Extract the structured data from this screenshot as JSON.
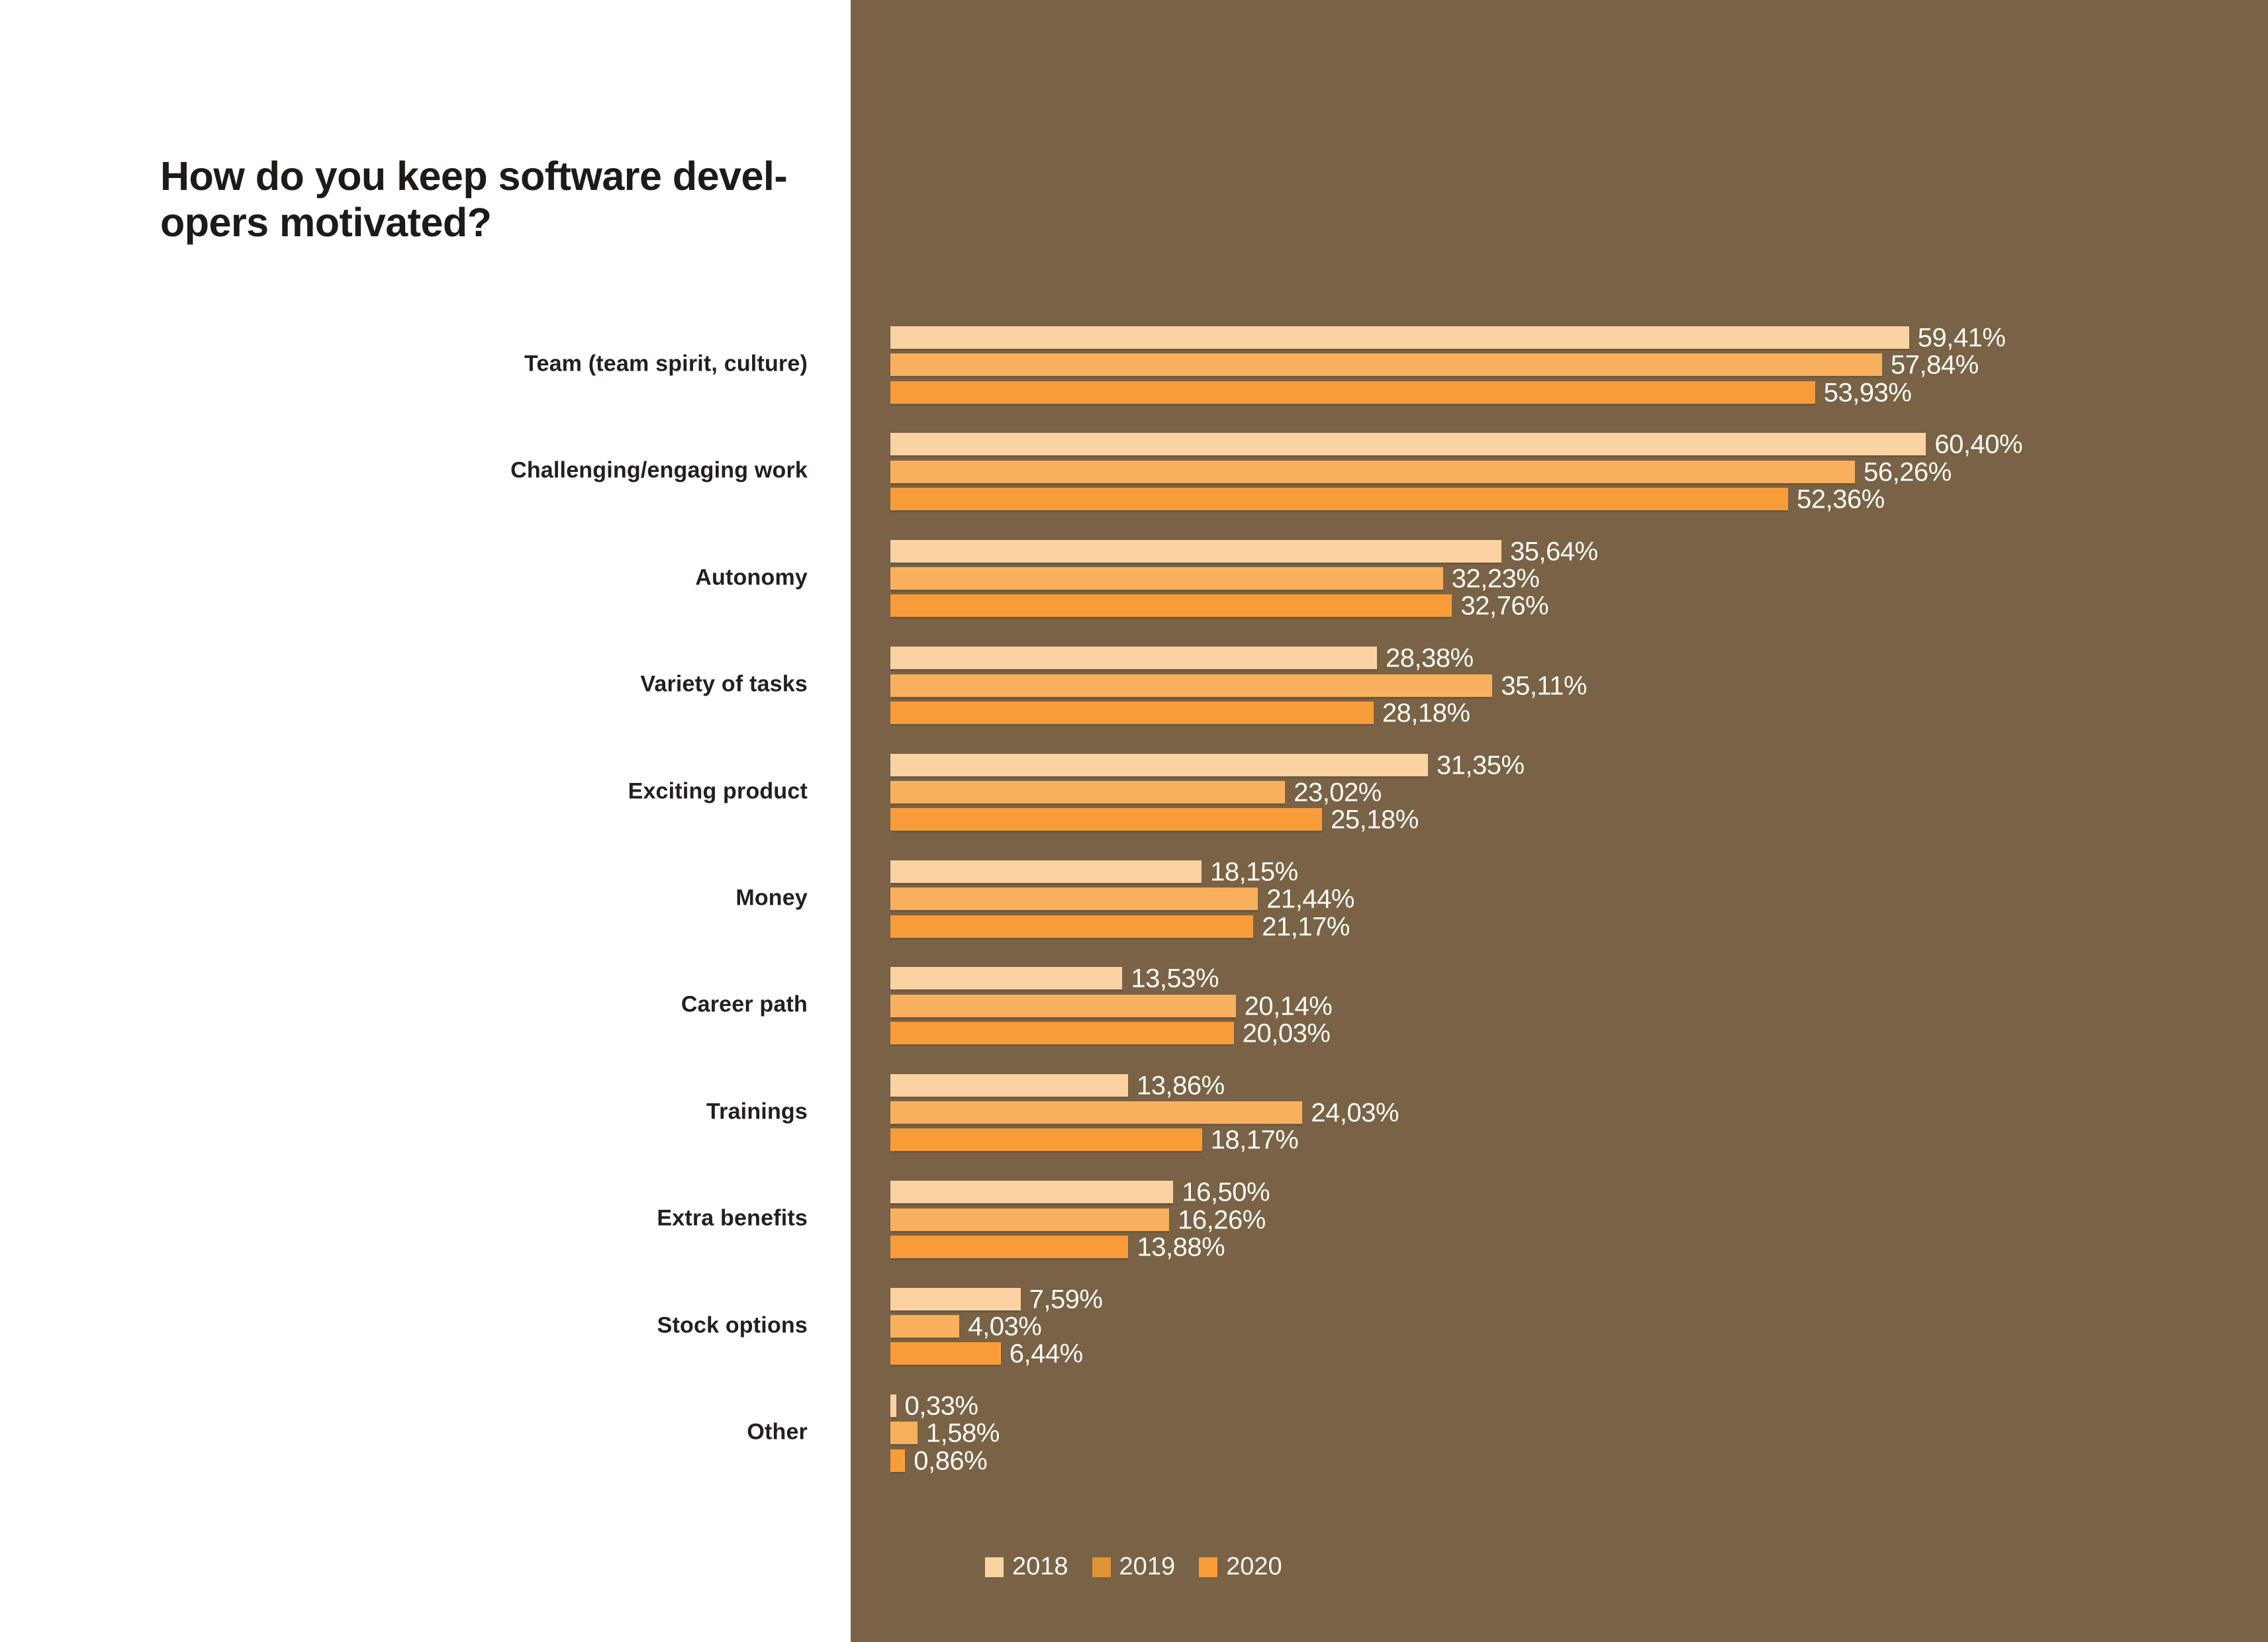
{
  "page": {
    "left_panel_color": "#FFFFFF",
    "right_panel_color": "#796245",
    "text_dark_color": "#241F1C",
    "text_light_color": "#FDFBF6"
  },
  "header": {
    "title_line1": "How do you keep software devel-",
    "title_line2": "opers motivated?"
  },
  "legend": {
    "items": [
      {
        "label": "2018",
        "swatch_color": "#FBD3A2"
      },
      {
        "label": "2019",
        "swatch_color": "#DF9438"
      },
      {
        "label": "2020",
        "swatch_color": "#F89C3A"
      }
    ]
  },
  "chart_data": {
    "type": "bar",
    "orientation": "horizontal",
    "title": "How do you keep software developers motivated?",
    "xlabel": "",
    "ylabel": "",
    "xlim": [
      0,
      62
    ],
    "grid": false,
    "legend_position": "bottom",
    "value_suffix": "%",
    "decimal_separator": ",",
    "categories": [
      "Team (team spirit, culture)",
      "Challenging/engaging work",
      "Autonomy",
      "Variety of tasks",
      "Exciting product",
      "Money",
      "Career path",
      "Trainings",
      "Extra benefits",
      "Stock options",
      "Other"
    ],
    "series": [
      {
        "name": "2018",
        "color": "#FBD3A2",
        "values": [
          59.41,
          60.4,
          35.64,
          28.38,
          31.35,
          18.15,
          13.53,
          13.86,
          16.5,
          7.59,
          0.33
        ],
        "display_values": [
          "59,41%",
          "60,40%",
          "35,64%",
          "28,38%",
          "31,35%",
          "18,15%",
          "13,53%",
          "13,86%",
          "16,50%",
          "7,59%",
          "0,33%"
        ]
      },
      {
        "name": "2019",
        "color": "#F8B05F",
        "values": [
          57.84,
          56.26,
          32.23,
          35.11,
          23.02,
          21.44,
          20.14,
          24.03,
          16.26,
          4.03,
          1.58
        ],
        "display_values": [
          "57,84%",
          "56,26%",
          "32,23%",
          "35,11%",
          "23,02%",
          "21,44%",
          "20,14%",
          "24,03%",
          "16,26%",
          "4,03%",
          "1,58%"
        ]
      },
      {
        "name": "2020",
        "color": "#F89C3A",
        "values": [
          53.93,
          52.36,
          32.76,
          28.18,
          25.18,
          21.17,
          20.03,
          18.17,
          13.88,
          6.44,
          0.86
        ],
        "display_values": [
          "53,93%",
          "52,36%",
          "32,76%",
          "28,18%",
          "25,18%",
          "21,17%",
          "20,03%",
          "18,17%",
          "13,88%",
          "6,44%",
          "0,86%"
        ]
      }
    ]
  }
}
